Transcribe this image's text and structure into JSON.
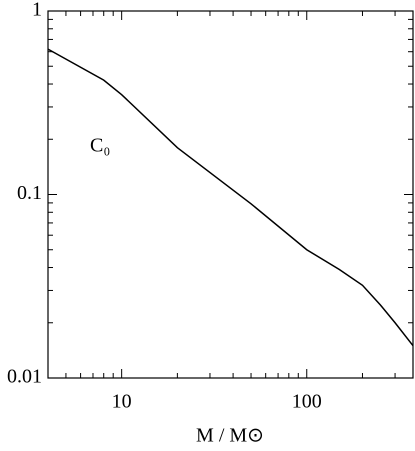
{
  "chart_data": {
    "type": "line",
    "x_label": "M / M⊙",
    "annotation": "C₀",
    "x": [
      4,
      8,
      10,
      20,
      50,
      100,
      150,
      200,
      250,
      300,
      375
    ],
    "series": [
      {
        "name": null,
        "color": "#000000",
        "values": [
          0.62,
          0.42,
          0.35,
          0.18,
          0.089,
          0.05,
          0.039,
          0.032,
          0.025,
          0.02,
          0.015
        ]
      }
    ],
    "xlim": [
      4,
      375
    ],
    "ylim": [
      0.01,
      1
    ],
    "xticks": [
      10,
      100
    ],
    "yticks": [
      0.01,
      0.1,
      1
    ],
    "log_x": true,
    "log_y": true,
    "grid": false
  }
}
